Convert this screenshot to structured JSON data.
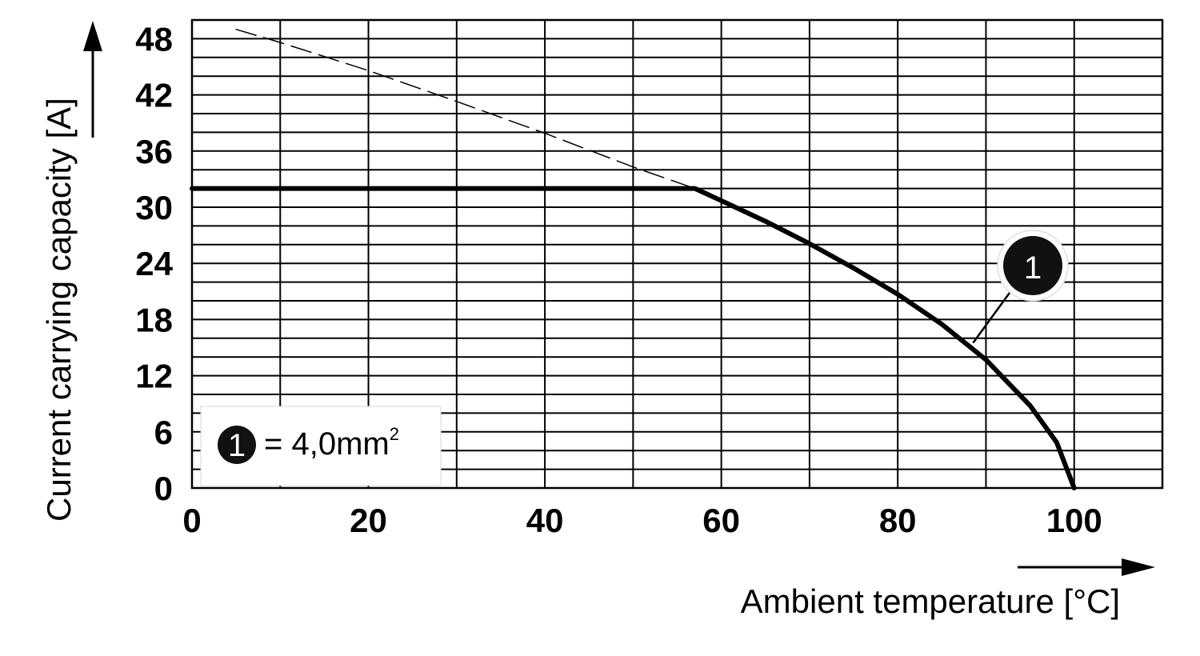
{
  "chart_data": {
    "type": "line",
    "xlabel": "Ambient temperature [°C]",
    "ylabel": "Current carrying capacity [A]",
    "xlim": [
      0,
      110
    ],
    "ylim": [
      0,
      50
    ],
    "x_ticks": [
      "0",
      "20",
      "40",
      "60",
      "80",
      "100"
    ],
    "y_ticks": [
      "0",
      "6",
      "12",
      "18",
      "24",
      "30",
      "36",
      "42",
      "48"
    ],
    "grid": true,
    "legend_position": "bottom-left",
    "series": [
      {
        "name": "1",
        "style": "solid",
        "x": [
          0,
          20,
          40,
          57,
          60,
          65,
          70,
          75,
          80,
          85,
          90,
          95,
          98,
          100
        ],
        "y": [
          32,
          32,
          32,
          32,
          30.7,
          28.5,
          26.1,
          23.5,
          20.7,
          17.5,
          13.7,
          8.8,
          4.9,
          0
        ]
      },
      {
        "name": "",
        "style": "dashed",
        "x": [
          5,
          10,
          20,
          30,
          40,
          50,
          57
        ],
        "y": [
          49,
          47.6,
          44.6,
          41.3,
          37.9,
          34.3,
          32
        ]
      }
    ],
    "annotation": {
      "label": "1",
      "target_x": 88,
      "target_y": 15
    },
    "legend": {
      "marker": "1",
      "text": "= 4,0mm",
      "superscript": "2"
    }
  }
}
